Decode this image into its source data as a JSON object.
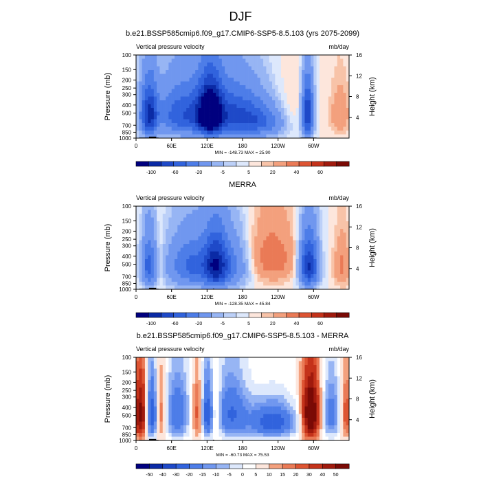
{
  "figure": {
    "title": "DJF"
  },
  "chart_data": [
    {
      "type": "heatmap",
      "title": "b.e21.BSSP585cmip6.f09_g17.CMIP6-SSP5-8.5.103 (yrs 2075-2099)",
      "left_label": "Vertical pressure velocity",
      "right_label": "mb/day",
      "ylabel": "Pressure (mb)",
      "y2label": "Height (km)",
      "x_ticks": [
        "0",
        "60E",
        "120E",
        "180",
        "120W",
        "60W"
      ],
      "x_tick_lons": [
        0,
        60,
        120,
        180,
        240,
        300
      ],
      "xlim": [
        0,
        360
      ],
      "y_ticks": [
        "100",
        "150",
        "200",
        "250",
        "300",
        "400",
        "500",
        "700",
        "850",
        "1000"
      ],
      "y_tick_values": [
        100,
        150,
        200,
        250,
        300,
        400,
        500,
        700,
        850,
        1000
      ],
      "ylim": [
        1000,
        100
      ],
      "y2_ticks": [
        "4",
        "8",
        "12",
        "16"
      ],
      "y2_tick_values": [
        4,
        8,
        12,
        16
      ],
      "stats_text": "MIN = -148.73  MAX = 25.90",
      "min": -148.73,
      "max": 25.9,
      "colorbar_labels": [
        "-100",
        "-60",
        "-20",
        "-5",
        "5",
        "20",
        "40",
        "60"
      ],
      "colorbar_colors": [
        "#00007f",
        "#0a2aa5",
        "#1e49c8",
        "#3163dd",
        "#4d7de8",
        "#7097ef",
        "#97b5f4",
        "#bcd0f8",
        "#dde8fc",
        "#fde6dc",
        "#f8c3a8",
        "#f3a07d",
        "#ea7a56",
        "#dd5432",
        "#c4321a",
        "#a01a0d",
        "#7a0a05"
      ]
    },
    {
      "type": "heatmap",
      "title": "MERRA",
      "left_label": "Vertical pressure velocity",
      "right_label": "mb/day",
      "ylabel": "Pressure (mb)",
      "y2label": "Height (km)",
      "x_ticks": [
        "0",
        "60E",
        "120E",
        "180",
        "120W",
        "60W"
      ],
      "x_tick_lons": [
        0,
        60,
        120,
        180,
        240,
        300
      ],
      "xlim": [
        0,
        360
      ],
      "y_ticks": [
        "100",
        "150",
        "200",
        "250",
        "300",
        "400",
        "500",
        "700",
        "850",
        "1000"
      ],
      "y_tick_values": [
        100,
        150,
        200,
        250,
        300,
        400,
        500,
        700,
        850,
        1000
      ],
      "ylim": [
        1000,
        100
      ],
      "y2_ticks": [
        "4",
        "8",
        "12",
        "16"
      ],
      "y2_tick_values": [
        4,
        8,
        12,
        16
      ],
      "stats_text": "MIN = -128.35  MAX = 45.84",
      "min": -128.35,
      "max": 45.84,
      "colorbar_labels": [
        "-100",
        "-60",
        "-20",
        "-5",
        "5",
        "20",
        "40",
        "60"
      ],
      "colorbar_colors": [
        "#00007f",
        "#0a2aa5",
        "#1e49c8",
        "#3163dd",
        "#4d7de8",
        "#7097ef",
        "#97b5f4",
        "#bcd0f8",
        "#dde8fc",
        "#fde6dc",
        "#f8c3a8",
        "#f3a07d",
        "#ea7a56",
        "#dd5432",
        "#c4321a",
        "#a01a0d",
        "#7a0a05"
      ]
    },
    {
      "type": "heatmap",
      "title": "b.e21.BSSP585cmip6.f09_g17.CMIP6-SSP5-8.5.103 - MERRA",
      "left_label": "Vertical pressure velocity",
      "right_label": "mb/day",
      "ylabel": "Pressure (mb)",
      "y2label": "Height (km)",
      "x_ticks": [
        "0",
        "60E",
        "120E",
        "180",
        "120W",
        "60W"
      ],
      "x_tick_lons": [
        0,
        60,
        120,
        180,
        240,
        300
      ],
      "xlim": [
        0,
        360
      ],
      "y_ticks": [
        "100",
        "150",
        "200",
        "250",
        "300",
        "400",
        "500",
        "700",
        "850",
        "1000"
      ],
      "y_tick_values": [
        100,
        150,
        200,
        250,
        300,
        400,
        500,
        700,
        850,
        1000
      ],
      "ylim": [
        1000,
        100
      ],
      "y2_ticks": [
        "4",
        "8",
        "12",
        "16"
      ],
      "y2_tick_values": [
        4,
        8,
        12,
        16
      ],
      "stats_text": "MIN = -60.73  MAX = 75.53",
      "min": -60.73,
      "max": 75.53,
      "colorbar_labels": [
        "-50",
        "-40",
        "-30",
        "-20",
        "-15",
        "-10",
        "-5",
        "0",
        "5",
        "10",
        "15",
        "20",
        "30",
        "40",
        "50"
      ],
      "colorbar_colors": [
        "#00007f",
        "#0a2aa5",
        "#1e49c8",
        "#3163dd",
        "#4d7de8",
        "#7097ef",
        "#97b5f4",
        "#dde8fc",
        "#ffffff",
        "#fde6dc",
        "#f3a07d",
        "#ea7a56",
        "#dd5432",
        "#c4321a",
        "#a01a0d",
        "#7a0a05"
      ]
    }
  ]
}
